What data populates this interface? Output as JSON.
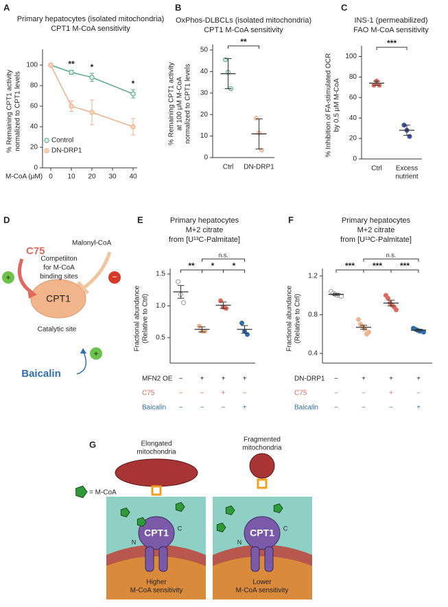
{
  "chart_data": [
    {
      "type": "line",
      "label": "A",
      "title": [
        "Primary hepatocytes (isolated mitochondria)",
        "CPT1 M-CoA sensitivity"
      ],
      "ylabel": [
        "% Remaining CPT1 activity",
        "normalized to CPT1 levels"
      ],
      "xlabel": "M-CoA (μM)",
      "x": [
        0,
        10,
        20,
        40
      ],
      "xlim": [
        -4,
        42
      ],
      "xticks": [
        0,
        10,
        20,
        30,
        40
      ],
      "ylim": [
        0,
        110
      ],
      "yticks": [
        0,
        20,
        40,
        60,
        80,
        100
      ],
      "legend": "lower left",
      "series": [
        {
          "name": "Control",
          "color": "#5aa88a",
          "fill": "#d6ece2",
          "values": [
            100,
            93,
            88,
            72
          ],
          "errors": [
            1,
            2,
            4,
            4
          ]
        },
        {
          "name": "DN-DRP1",
          "color": "#eeb28c",
          "fill": "#f6d2bb",
          "values": [
            100,
            60,
            54,
            40
          ],
          "errors": [
            1,
            5,
            12,
            8
          ]
        }
      ],
      "significance": [
        {
          "x": 10,
          "label": "**"
        },
        {
          "x": 20,
          "label": "*"
        },
        {
          "x": 40,
          "label": "*"
        }
      ]
    },
    {
      "type": "dot",
      "label": "B",
      "title": [
        "OxPhos-DLBCLs (isolated mitochondria)",
        "CPT1 M-CoA sensitivity"
      ],
      "ylabel": [
        "% Remaining CPT1 activity",
        "at 100 μM  M-CoA",
        "normalized to CPT1 levels"
      ],
      "categories": [
        [
          "Ctrl"
        ],
        [
          "DN-DRP1"
        ]
      ],
      "ylim": [
        0,
        50
      ],
      "yticks": [
        0,
        10,
        20,
        30,
        40,
        50
      ],
      "colors": [
        "#5aa88a",
        "#eeb28c"
      ],
      "fills": [
        "#d6ece2",
        "#f6d2bb"
      ],
      "points": [
        [
          45.5,
          39.7,
          32
        ],
        [
          18.3,
          11.5,
          3.5
        ]
      ],
      "means": [
        39,
        11
      ],
      "errors": [
        7,
        7
      ],
      "significance": [
        {
          "from": 0,
          "to": 1,
          "label": "**"
        }
      ]
    },
    {
      "type": "dot",
      "label": "C",
      "title": [
        "INS-1 (permeabilized)",
        "FAO M-CoA sensitivity"
      ],
      "ylabel": [
        "% Inhibition of FA-stimulated OCR",
        "by 0.5 μM M-CoA"
      ],
      "categories": [
        [
          "Ctrl"
        ],
        [
          "Excess",
          "nutrient"
        ]
      ],
      "ylim": [
        0,
        105
      ],
      "yticks": [
        0,
        20,
        40,
        60,
        80,
        100
      ],
      "colors": [
        "#e0685c",
        "#3b4fa0"
      ],
      "fills": [
        "#e0685c",
        "#3b4fa0"
      ],
      "points": [
        [
          72,
          76,
          72
        ],
        [
          33,
          28,
          22
        ]
      ],
      "means": [
        74,
        28
      ],
      "errors": [
        2,
        5
      ],
      "significance": [
        {
          "from": 0,
          "to": 1,
          "label": "***"
        }
      ]
    },
    {
      "type": "dot",
      "label": "E",
      "title": [
        "Primary hepatocytes",
        "M+2 citrate",
        "from [U¹³C-Palmitate]"
      ],
      "ylabel": [
        "Fractional abundance",
        "(Relative to Ctrl)"
      ],
      "ylim": [
        0.1,
        1.5
      ],
      "yticks": [
        0.5,
        {
          "value": 1,
          "label": "1.0"
        },
        1.5
      ],
      "colors": [
        "#9a9a9a",
        "#eeb28c",
        "#e0685c",
        "#2f6fb0"
      ],
      "fills": [
        "#ffffff",
        "#eeb28c",
        "#e0685c",
        "#2f6fb0"
      ],
      "points": [
        [
          1.38,
          1.18,
          1.05
        ],
        [
          0.68,
          0.6,
          0.6
        ],
        [
          1.08,
          0.98,
          0.96
        ],
        [
          0.73,
          0.6,
          0.55
        ]
      ],
      "means": [
        1.22,
        0.63,
        1.01,
        0.63
      ],
      "errors": [
        0.1,
        0.04,
        0.05,
        0.06
      ],
      "significance": [
        {
          "from": 0,
          "to": 1,
          "label": "**"
        },
        {
          "from": 1,
          "to": 2,
          "label": "*"
        },
        {
          "from": 2,
          "to": 3,
          "label": "*"
        },
        {
          "from": 1,
          "to": 3,
          "label": "n.s."
        }
      ],
      "conditions": [
        {
          "name": "MFN2 OE",
          "color": "#222222",
          "values": [
            "−",
            "+",
            "+",
            "+"
          ]
        },
        {
          "name": "C75",
          "color": "#e0685c",
          "values": [
            "−",
            "−",
            "+",
            "−"
          ]
        },
        {
          "name": "Baicalin",
          "color": "#2f6fb0",
          "values": [
            "−",
            "−",
            "−",
            "+"
          ]
        }
      ]
    },
    {
      "type": "dot",
      "label": "F",
      "title": [
        "Primary hepatocytes",
        "M+2 citrate",
        "from [U¹³C-Palmitate]"
      ],
      "ylabel": [
        "Fractional abundance",
        "(Relative to Ctrl)"
      ],
      "ylim": [
        0.3,
        1.22
      ],
      "yticks": [
        0.4,
        0.8,
        1.2
      ],
      "colors": [
        "#9a9a9a",
        "#eeb28c",
        "#e0685c",
        "#2f6fb0"
      ],
      "fills": [
        "#ffffff",
        "#eeb28c",
        "#e0685c",
        "#2f6fb0"
      ],
      "points": [
        [
          1.04,
          1.02,
          1.01,
          1.0,
          1.0,
          0.99
        ],
        [
          0.75,
          0.7,
          0.68,
          0.65,
          0.6,
          0.62
        ],
        [
          1.0,
          0.97,
          0.92,
          0.9,
          0.88,
          0.85
        ],
        [
          0.66,
          0.65,
          0.64,
          0.63,
          0.63,
          0.62
        ]
      ],
      "means": [
        1.01,
        0.67,
        0.92,
        0.64
      ],
      "errors": [
        0.01,
        0.02,
        0.03,
        0.01
      ],
      "significance": [
        {
          "from": 0,
          "to": 1,
          "label": "***"
        },
        {
          "from": 1,
          "to": 2,
          "label": "***"
        },
        {
          "from": 2,
          "to": 3,
          "label": "***"
        },
        {
          "from": 1,
          "to": 3,
          "label": "n.s."
        }
      ],
      "conditions": [
        {
          "name": "DN-DRP1",
          "color": "#222222",
          "values": [
            "−",
            "+",
            "+",
            "+"
          ]
        },
        {
          "name": "C75",
          "color": "#e0685c",
          "values": [
            "−",
            "−",
            "+",
            "−"
          ]
        },
        {
          "name": "Baicalin",
          "color": "#2f6fb0",
          "values": [
            "−",
            "−",
            "−",
            "+"
          ]
        }
      ]
    }
  ],
  "diagrams": {
    "D": {
      "label": "D",
      "c75": "C75",
      "malonyl": "Malonyl-CoA",
      "competition": [
        "Competiiton",
        "for M-CoA",
        "binding sites"
      ],
      "enzyme": "CPT1",
      "site": "Catalytic site",
      "baicalin": "Baicalin",
      "plus": "+",
      "minus": "−"
    },
    "G": {
      "label": "G",
      "left_title": [
        "Elongated",
        "mitochondria"
      ],
      "right_title": [
        "Fragmented",
        "mitochondria"
      ],
      "key": "= M-CoA",
      "enzyme": "CPT1",
      "n": "N",
      "c": "C",
      "left_caption": [
        "Higher",
        "M-CoA sensitivity"
      ],
      "right_caption": [
        "Lower",
        "M-CoA sensitivity"
      ]
    }
  }
}
